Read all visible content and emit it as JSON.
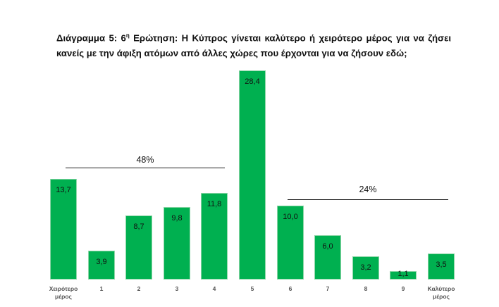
{
  "title": {
    "prefix": "Διάγραμμα 5: 6",
    "sup": "η",
    "rest": " Ερώτηση: Η Κύπρος γίνεται καλύτερο ή χειρότερο μέρος για να ζήσει κανείς με την άφιξη ατόμων από άλλες χώρες που έρχονται για να ζήσουν εδώ;"
  },
  "colors": {
    "bar": "#00b050",
    "bar_border": "#8fd6a8",
    "bracket": "#222222"
  },
  "brackets": [
    {
      "label": "48%",
      "from_index": 0,
      "to_index": 4
    },
    {
      "label": "24%",
      "from_index": 6,
      "to_index": 10
    }
  ],
  "bars": [
    {
      "category": "Χειρότερο μέρος",
      "label": "13,7"
    },
    {
      "category": "1",
      "label": "3,9"
    },
    {
      "category": "2",
      "label": "8,7"
    },
    {
      "category": "3",
      "label": "9,8"
    },
    {
      "category": "4",
      "label": "11,8"
    },
    {
      "category": "5",
      "label": "28,4"
    },
    {
      "category": "6",
      "label": "10,0"
    },
    {
      "category": "7",
      "label": "6,0"
    },
    {
      "category": "8",
      "label": "3,2"
    },
    {
      "category": "9",
      "label": "1,1"
    },
    {
      "category": "Καλύτερο μέρος",
      "label": "3,5"
    }
  ],
  "chart_data": {
    "type": "bar",
    "title": "Διάγραμμα 5: 6η Ερώτηση: Η Κύπρος γίνεται καλύτερο ή χειρότερο μέρος για να ζήσει κανείς με την άφιξη ατόμων από άλλες χώρες που έρχονται για να ζήσουν εδώ;",
    "categories": [
      "Χειρότερο μέρος",
      "1",
      "2",
      "3",
      "4",
      "5",
      "6",
      "7",
      "8",
      "9",
      "Καλύτερο μέρος"
    ],
    "values": [
      13.7,
      3.9,
      8.7,
      9.8,
      11.8,
      28.4,
      10.0,
      6.0,
      3.2,
      1.1,
      3.5
    ],
    "xlabel": "",
    "ylabel": "",
    "grid": false,
    "legend": "none",
    "data_labels": true,
    "annotations": [
      {
        "text": "48%",
        "spans": [
          "Χειρότερο μέρος",
          "4"
        ]
      },
      {
        "text": "24%",
        "spans": [
          "6",
          "Καλύτερο μέρος"
        ]
      }
    ]
  }
}
